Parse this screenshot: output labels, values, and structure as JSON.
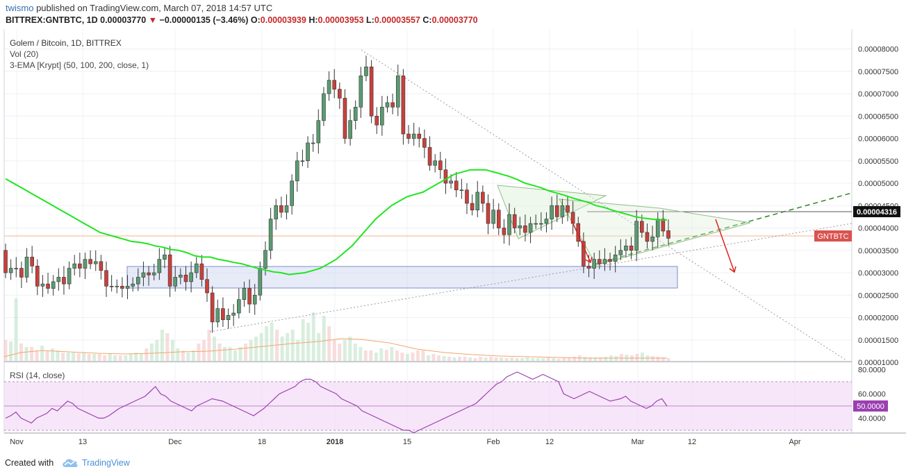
{
  "header": {
    "user": "twismo",
    "published_text": "published on TradingView.com, March 07, 2018 14:57 UTC",
    "symbol": "BITTREX:GNTBTC, 1D",
    "last": "0.00003770",
    "change": "−0.00000135 (−3.46%)",
    "o_label": "O:",
    "o": "0.00003939",
    "h_label": "H:",
    "h": "0.00003953",
    "l_label": "L:",
    "l": "0.00003557",
    "c_label": "C:",
    "c": "0.00003770"
  },
  "legend": {
    "title": "Golem / Bitcoin, 1D, BITTREX",
    "vol": "Vol (20)",
    "ema": "3-EMA [Krypt] (50, 100, 200, close, 1)"
  },
  "rsi_label": "RSI (14, close)",
  "price_tag": "0.00004316",
  "symbol_tag": "GNTBTC",
  "rsi_tag": "50.0000",
  "footer": {
    "created": "Created with",
    "brand": "TradingView"
  },
  "colors": {
    "up": "#5b9b72",
    "down": "#c9403b",
    "ema": "#1ee51e",
    "rsi": "#9b3fb0",
    "zone": "#c9d2f0"
  },
  "chart_data": {
    "type": "candlestick",
    "price_axis_ticks": [
      "0.00008000",
      "0.00007500",
      "0.00007000",
      "0.00006500",
      "0.00006000",
      "0.00005500",
      "0.00005000",
      "0.00004500",
      "0.00004000",
      "0.00003500",
      "0.00003000",
      "0.00002500",
      "0.00002000",
      "0.00001500",
      "0.00001000"
    ],
    "rsi_axis_ticks": [
      "80.0000",
      "60.0000",
      "40.0000"
    ],
    "time_axis_ticks": [
      "Nov",
      "13",
      "Dec",
      "18",
      "2018",
      "15",
      "Feb",
      "12",
      "Mar",
      "12",
      "Apr"
    ],
    "ohlc": [
      [
        3.5,
        3.0
      ],
      [
        3.0,
        3.1
      ],
      [
        3.1,
        3.1
      ],
      [
        3.1,
        2.9
      ],
      [
        2.9,
        3.35
      ],
      [
        3.35,
        3.15
      ],
      [
        3.15,
        2.7
      ],
      [
        2.7,
        2.75
      ],
      [
        2.75,
        2.65
      ],
      [
        2.65,
        2.8
      ],
      [
        2.8,
        2.9
      ],
      [
        2.9,
        2.75
      ],
      [
        2.75,
        3.1
      ],
      [
        3.1,
        3.2
      ],
      [
        3.2,
        3.1
      ],
      [
        3.1,
        3.3
      ],
      [
        3.3,
        3.2
      ],
      [
        3.2,
        3.25
      ],
      [
        3.25,
        3.05
      ],
      [
        3.05,
        2.7
      ],
      [
        2.7,
        2.7
      ],
      [
        2.7,
        2.7
      ],
      [
        2.7,
        2.65
      ],
      [
        2.65,
        2.7
      ],
      [
        2.7,
        2.75
      ],
      [
        2.75,
        2.9
      ],
      [
        2.9,
        3.0
      ],
      [
        3.0,
        2.95
      ],
      [
        2.95,
        3.0
      ],
      [
        3.0,
        3.3
      ],
      [
        3.3,
        3.4
      ],
      [
        3.4,
        2.7
      ],
      [
        2.7,
        2.9
      ],
      [
        2.9,
        2.95
      ],
      [
        2.95,
        2.8
      ],
      [
        2.8,
        3.0
      ],
      [
        3.0,
        3.2
      ],
      [
        3.2,
        2.85
      ],
      [
        2.85,
        2.55
      ],
      [
        2.55,
        1.9
      ],
      [
        1.9,
        2.2
      ],
      [
        2.2,
        1.95
      ],
      [
        1.95,
        2.05
      ],
      [
        2.05,
        2.1
      ],
      [
        2.1,
        2.4
      ],
      [
        2.4,
        2.65
      ],
      [
        2.65,
        2.3
      ],
      [
        2.3,
        2.5
      ],
      [
        2.5,
        3.1
      ],
      [
        3.1,
        3.5
      ],
      [
        3.5,
        4.2
      ],
      [
        4.2,
        4.5
      ],
      [
        4.5,
        4.35
      ],
      [
        4.35,
        4.5
      ],
      [
        4.5,
        5.05
      ],
      [
        5.05,
        5.5
      ],
      [
        5.5,
        5.5
      ],
      [
        5.5,
        5.9
      ],
      [
        5.9,
        5.9
      ],
      [
        5.9,
        6.4
      ],
      [
        6.4,
        7.0
      ],
      [
        7.0,
        7.3
      ],
      [
        7.3,
        7.1
      ],
      [
        7.1,
        6.9
      ],
      [
        6.9,
        6.0
      ],
      [
        6.0,
        6.4
      ],
      [
        6.4,
        6.7
      ],
      [
        6.7,
        7.4
      ],
      [
        7.4,
        7.6
      ],
      [
        7.6,
        6.5
      ],
      [
        6.5,
        6.3
      ],
      [
        6.3,
        6.7
      ],
      [
        6.7,
        6.8
      ],
      [
        6.8,
        6.7
      ],
      [
        6.7,
        7.4
      ],
      [
        7.4,
        6.1
      ],
      [
        6.1,
        6.0
      ],
      [
        6.0,
        6.1
      ],
      [
        6.1,
        6.0
      ],
      [
        6.0,
        5.8
      ],
      [
        5.8,
        5.4
      ],
      [
        5.4,
        5.5
      ],
      [
        5.5,
        5.3
      ],
      [
        5.3,
        5.0
      ],
      [
        5.0,
        5.05
      ],
      [
        5.05,
        4.85
      ],
      [
        4.85,
        4.85
      ],
      [
        4.85,
        4.55
      ],
      [
        4.55,
        4.4
      ],
      [
        4.4,
        4.8
      ],
      [
        4.8,
        4.55
      ],
      [
        4.55,
        4.1
      ],
      [
        4.1,
        4.4
      ],
      [
        4.4,
        4.0
      ],
      [
        4.0,
        3.85
      ],
      [
        3.85,
        4.3
      ],
      [
        4.3,
        4.0
      ],
      [
        4.0,
        4.05
      ],
      [
        4.05,
        3.9
      ],
      [
        3.9,
        4.1
      ],
      [
        4.1,
        4.1
      ],
      [
        4.1,
        4.1
      ],
      [
        4.1,
        4.2
      ],
      [
        4.2,
        4.5
      ],
      [
        4.5,
        4.25
      ],
      [
        4.25,
        4.5
      ],
      [
        4.5,
        4.35
      ],
      [
        4.35,
        4.1
      ],
      [
        4.1,
        3.7
      ],
      [
        3.7,
        3.15
      ],
      [
        3.15,
        3.1
      ],
      [
        3.1,
        3.3
      ],
      [
        3.3,
        3.2
      ],
      [
        3.2,
        3.3
      ],
      [
        3.3,
        3.25
      ],
      [
        3.25,
        3.4
      ],
      [
        3.4,
        3.5
      ],
      [
        3.5,
        3.6
      ],
      [
        3.6,
        3.5
      ],
      [
        3.5,
        4.15
      ],
      [
        4.15,
        3.9
      ],
      [
        3.9,
        3.7
      ],
      [
        3.7,
        3.8
      ],
      [
        3.8,
        4.2
      ],
      [
        4.2,
        3.93
      ],
      [
        3.939,
        3.77
      ]
    ],
    "volume": [
      0.3,
      0.28,
      0.9,
      0.25,
      0.2,
      0.2,
      0.15,
      0.22,
      0.15,
      0.18,
      0.15,
      0.12,
      0.12,
      0.12,
      0.11,
      0.12,
      0.1,
      0.1,
      0.1,
      0.08,
      0.1,
      0.08,
      0.08,
      0.08,
      0.1,
      0.12,
      0.1,
      0.18,
      0.25,
      0.3,
      0.45,
      0.4,
      0.3,
      0.18,
      0.15,
      0.12,
      0.15,
      0.25,
      0.3,
      0.45,
      0.35,
      0.25,
      0.2,
      0.2,
      0.15,
      0.2,
      0.25,
      0.3,
      0.35,
      0.4,
      0.5,
      0.55,
      0.45,
      0.35,
      0.4,
      0.45,
      0.3,
      0.6,
      0.55,
      0.7,
      0.4,
      0.65,
      0.5,
      0.3,
      0.25,
      0.3,
      0.35,
      0.25,
      0.2,
      0.15,
      0.15,
      0.12,
      0.18,
      0.16,
      0.2,
      0.15,
      0.12,
      0.1,
      0.12,
      0.15,
      0.15,
      0.08,
      0.1,
      0.08,
      0.07,
      0.06,
      0.05,
      0.06,
      0.06,
      0.05,
      0.04,
      0.06,
      0.05,
      0.06,
      0.05,
      0.05,
      0.04,
      0.05,
      0.04,
      0.04,
      0.05,
      0.04,
      0.04,
      0.04,
      0.05,
      0.04,
      0.03,
      0.05,
      0.04,
      0.06,
      0.08,
      0.06,
      0.05,
      0.05,
      0.05,
      0.06,
      0.08,
      0.07,
      0.1,
      0.09,
      0.08,
      0.1,
      0.12,
      0.08,
      0.07,
      0.06,
      0.05,
      0.04
    ],
    "ema": [
      5.1,
      5.0,
      4.9,
      4.8,
      4.7,
      4.6,
      4.5,
      4.4,
      4.3,
      4.2,
      4.1,
      4.0,
      3.9,
      3.85,
      3.8,
      3.75,
      3.7,
      3.68,
      3.65,
      3.6,
      3.57,
      3.52,
      3.5,
      3.45,
      3.38,
      3.35,
      3.35,
      3.3,
      3.27,
      3.23,
      3.2,
      3.15,
      3.1,
      3.06,
      3.02,
      3.0,
      2.96,
      2.98,
      3.0,
      3.05,
      3.1,
      3.2,
      3.3,
      3.45,
      3.6,
      3.8,
      4.0,
      4.2,
      4.35,
      4.5,
      4.6,
      4.7,
      4.75,
      4.8,
      4.9,
      5.0,
      5.1,
      5.2,
      5.25,
      5.3,
      5.3,
      5.3,
      5.25,
      5.2,
      5.15,
      5.08,
      5.0,
      4.95,
      4.9,
      4.83,
      4.78,
      4.73,
      4.67,
      4.62,
      4.57,
      4.5,
      4.46,
      4.4,
      4.35,
      4.3,
      4.25,
      4.22,
      4.2,
      4.18,
      4.18
    ],
    "rsi": [
      40,
      42,
      45,
      40,
      38,
      36,
      40,
      42,
      44,
      48,
      46,
      50,
      54,
      52,
      48,
      46,
      44,
      42,
      40,
      40,
      42,
      45,
      48,
      50,
      52,
      54,
      56,
      58,
      62,
      66,
      60,
      58,
      54,
      52,
      50,
      48,
      46,
      50,
      52,
      54,
      56,
      55,
      54,
      52,
      50,
      48,
      46,
      44,
      42,
      45,
      48,
      52,
      56,
      60,
      62,
      64,
      66,
      70,
      72,
      72,
      70,
      66,
      64,
      62,
      60,
      56,
      54,
      52,
      50,
      46,
      44,
      42,
      40,
      38,
      36,
      34,
      32,
      30,
      30,
      28,
      30,
      32,
      34,
      36,
      38,
      40,
      42,
      44,
      46,
      48,
      50,
      52,
      56,
      60,
      64,
      68,
      70,
      74,
      76,
      78,
      76,
      74,
      72,
      74,
      76,
      74,
      72,
      70,
      60,
      58,
      56,
      58,
      60,
      62,
      60,
      58,
      56,
      54,
      55,
      56,
      58,
      54,
      52,
      50,
      48,
      50,
      54,
      56,
      50
    ]
  }
}
